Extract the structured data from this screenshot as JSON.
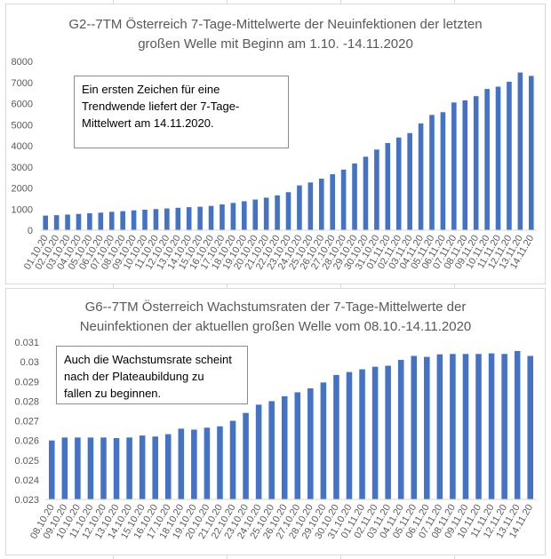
{
  "colors": {
    "bar": "#4472c4",
    "gridline": "#d9d9d9",
    "text": "#595959"
  },
  "chart_data": [
    {
      "type": "bar",
      "title_line1": "G2--7TM Österreich 7-Tage-Mittelwerte der Neuinfektionen der letzten",
      "title_line2": "großen Welle mit Beginn am 1.10. -14.11.2020",
      "annotation_lines": [
        "Ein ersten Zeichen für eine",
        "Trendwende liefert der 7-Tage-",
        "Mittelwert am 14.11.2020."
      ],
      "xlabel": "",
      "ylabel": "",
      "ylim": [
        0,
        8000
      ],
      "yticks": [
        0,
        1000,
        2000,
        3000,
        4000,
        5000,
        6000,
        7000,
        8000
      ],
      "ytick_labels": [
        "0",
        "1000",
        "2000",
        "3000",
        "4000",
        "5000",
        "6000",
        "7000",
        "8000"
      ],
      "grid": false,
      "legend": "none",
      "categories": [
        "01.10.20",
        "02.10.20",
        "03.10.20",
        "04.10.20",
        "05.10.20",
        "06.10.20",
        "07.10.20",
        "08.10.20",
        "09.10.20",
        "10.10.20",
        "11.10.20",
        "12.10.20",
        "13.10.20",
        "14.10.20",
        "15.10.20",
        "16.10.20",
        "17.10.20",
        "18.10.20",
        "19.10.20",
        "20.10.20",
        "21.10.20",
        "22.10.20",
        "23.10.20",
        "24.10.20",
        "25.10.20",
        "26.10.20",
        "27.10.20",
        "28.10.20",
        "29.10.20",
        "30.10.20",
        "31.10.20",
        "01.11.20",
        "02.11.20",
        "03.11.20",
        "04.11.20",
        "05.11.20",
        "06.11.20",
        "07.11.20",
        "08.11.20",
        "09.11.20",
        "10.11.20",
        "11.11.20",
        "12.11.20",
        "13.11.20",
        "14.11.20"
      ],
      "values": [
        690,
        710,
        740,
        770,
        800,
        830,
        870,
        900,
        940,
        970,
        1000,
        1030,
        1060,
        1090,
        1110,
        1150,
        1220,
        1290,
        1370,
        1450,
        1540,
        1650,
        1800,
        2120,
        2260,
        2440,
        2650,
        2870,
        3160,
        3480,
        3820,
        4130,
        4390,
        4600,
        5060,
        5460,
        5590,
        6050,
        6150,
        6350,
        6690,
        6800,
        7030,
        7470,
        7310
      ]
    },
    {
      "type": "bar",
      "title_line1": "G6--7TM Österreich Wachstumsraten der 7-Tage-Mittelwerte der",
      "title_line2": "Neuinfektionen der aktuellen großen Welle vom 08.10.-14.11.2020",
      "annotation_lines": [
        "Auch die Wachstumsrate scheint",
        "nach der Plateaubildung zu",
        "fallen zu beginnen."
      ],
      "xlabel": "",
      "ylabel": "",
      "ylim": [
        0.023,
        0.031
      ],
      "yticks": [
        0.023,
        0.024,
        0.025,
        0.026,
        0.027,
        0.028,
        0.029,
        0.03,
        0.031
      ],
      "ytick_labels": [
        "0.023",
        "0.024",
        "0.025",
        "0.026",
        "0.027",
        "0.028",
        "0.029",
        "0.03",
        "0.031"
      ],
      "grid": false,
      "legend": "none",
      "categories": [
        "08.10.20",
        "09.10.20",
        "10.10.20",
        "11.10.20",
        "12.10.20",
        "13.10.20",
        "14.10.20",
        "15.10.20",
        "16.10.20",
        "17.10.20",
        "18.10.20",
        "19.10.20",
        "20.10.20",
        "21.10.20",
        "22.10.20",
        "23.10.20",
        "24.10.20",
        "25.10.20",
        "26.10.20",
        "27.10.20",
        "28.10.20",
        "29.10.20",
        "30.10.20",
        "31.10.20",
        "01.11.20",
        "02.11.20",
        "03.11.20",
        "04.11.20",
        "05.11.20",
        "06.11.20",
        "07.11.20",
        "08.11.20",
        "09.11.20",
        "10.11.20",
        "11.11.20",
        "12.11.20",
        "13.11.20",
        "14.11.20"
      ],
      "values": [
        0.026,
        0.02615,
        0.02615,
        0.02615,
        0.02615,
        0.02612,
        0.02615,
        0.02625,
        0.0262,
        0.02632,
        0.0266,
        0.02655,
        0.02665,
        0.02672,
        0.027,
        0.0274,
        0.02782,
        0.028,
        0.02825,
        0.02845,
        0.02865,
        0.02895,
        0.02933,
        0.02948,
        0.02962,
        0.02975,
        0.0298,
        0.0301,
        0.0303,
        0.03025,
        0.03038,
        0.0304,
        0.0304,
        0.0304,
        0.03043,
        0.0304,
        0.03055,
        0.0303
      ]
    }
  ]
}
